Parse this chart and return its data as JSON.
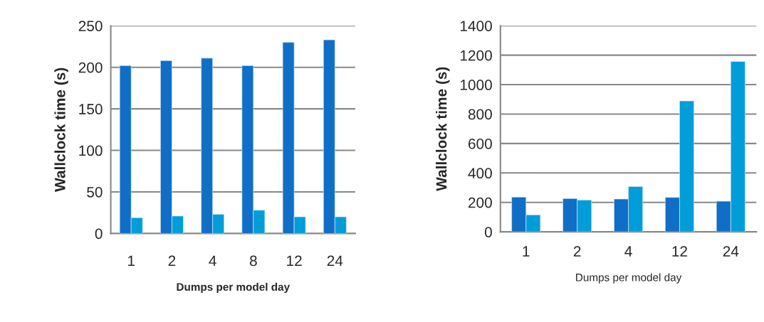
{
  "chart_data": [
    {
      "type": "bar",
      "xlabel": "Dumps per model day",
      "ylabel": "Wallclock time (s)",
      "categories": [
        "1",
        "2",
        "4",
        "8",
        "12",
        "24"
      ],
      "series": [
        {
          "color": "#106ec6",
          "values": [
            202,
            208,
            211,
            202,
            230,
            233
          ]
        },
        {
          "color": "#009dd9",
          "values": [
            19,
            21,
            23,
            28,
            20,
            20
          ]
        }
      ],
      "ylim": [
        0,
        250
      ],
      "yticks": [
        0,
        50,
        100,
        150,
        200,
        250
      ],
      "grid": "y"
    },
    {
      "type": "bar",
      "xlabel": "Dumps per model day",
      "ylabel": "Wallclock time (s)",
      "categories": [
        "1",
        "2",
        "4",
        "12",
        "24"
      ],
      "series": [
        {
          "color": "#106ec6",
          "values": [
            236,
            226,
            223,
            234,
            208
          ]
        },
        {
          "color": "#009dd9",
          "values": [
            115,
            216,
            308,
            889,
            1157
          ]
        }
      ],
      "ylim": [
        0,
        1400
      ],
      "yticks": [
        0,
        200,
        400,
        600,
        800,
        1000,
        1200,
        1400
      ],
      "grid": "y"
    }
  ]
}
